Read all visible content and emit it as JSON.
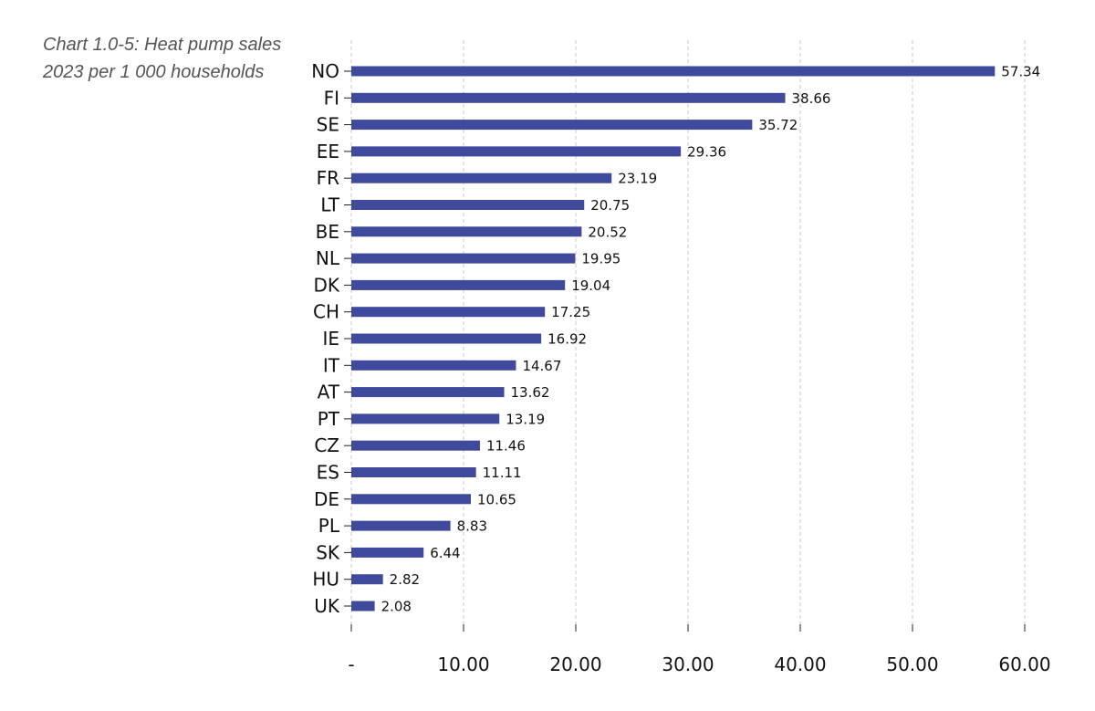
{
  "chart_data": {
    "type": "bar",
    "orientation": "horizontal",
    "title": "Chart 1.0-5: Heat pump sales 2023 per 1 000 households",
    "categories": [
      "NO",
      "FI",
      "SE",
      "EE",
      "FR",
      "LT",
      "BE",
      "NL",
      "DK",
      "CH",
      "IE",
      "IT",
      "AT",
      "PT",
      "CZ",
      "ES",
      "DE",
      "PL",
      "SK",
      "HU",
      "UK"
    ],
    "values": [
      57.34,
      38.66,
      35.72,
      29.36,
      23.19,
      20.75,
      20.52,
      19.95,
      19.04,
      17.25,
      16.92,
      14.67,
      13.62,
      13.19,
      11.46,
      11.11,
      10.65,
      8.83,
      6.44,
      2.82,
      2.08
    ],
    "value_labels": [
      "57.34",
      "38.66",
      "35.72",
      "29.36",
      "23.19",
      "20.75",
      "20.52",
      "19.95",
      "19.04",
      "17.25",
      "16.92",
      "14.67",
      "13.62",
      "13.19",
      "11.46",
      "11.11",
      "10.65",
      "8.83",
      "6.44",
      "2.82",
      "2.08"
    ],
    "xticks": [
      0,
      10,
      20,
      30,
      40,
      50,
      60
    ],
    "xtick_labels": [
      "-",
      "10.00",
      "20.00",
      "30.00",
      "40.00",
      "50.00",
      "60.00"
    ],
    "xlim": [
      0,
      60
    ],
    "grid": "vertical dashed",
    "legend": "none",
    "bar_color": "#3f4a9c",
    "grid_color": "#c8c8c8"
  }
}
